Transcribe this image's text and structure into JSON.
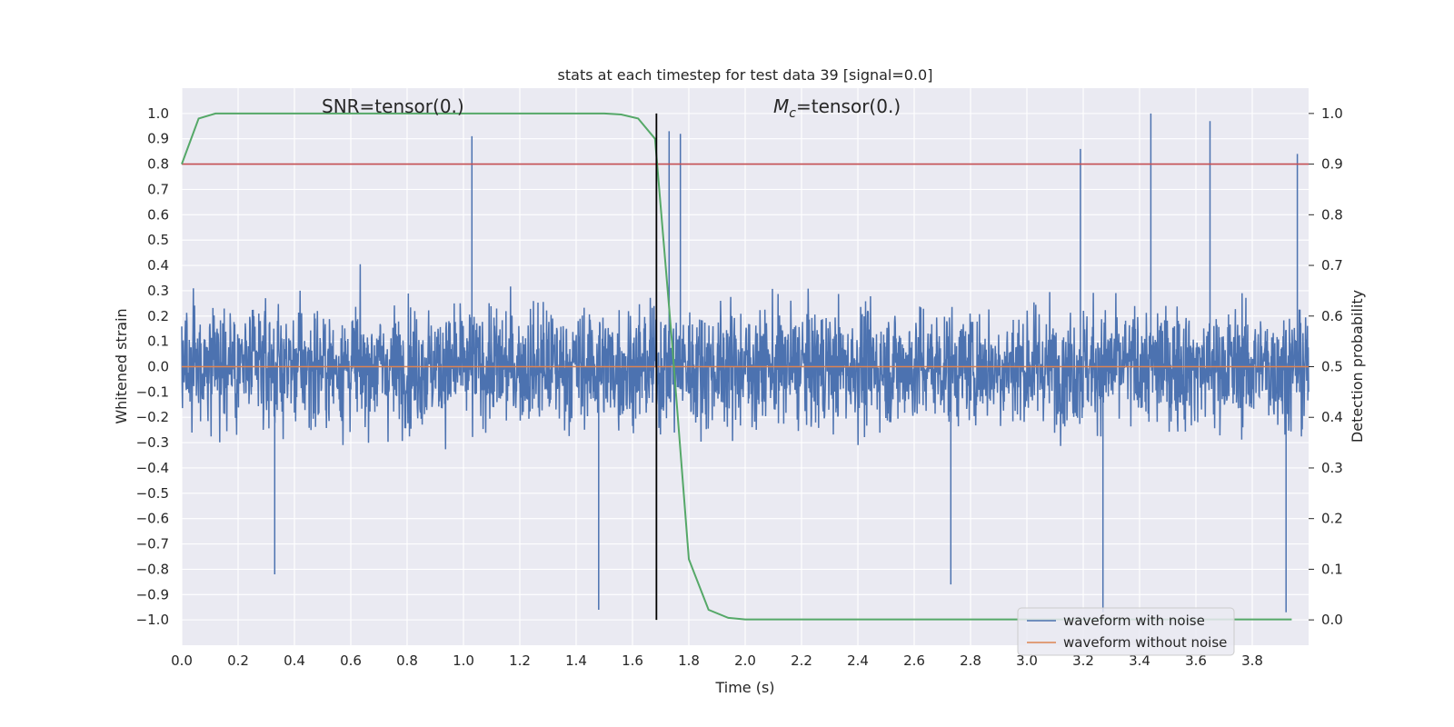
{
  "chart_data": {
    "type": "line",
    "title": "stats at each timestep for test data 39 [signal=0.0]",
    "xlabel": "Time (s)",
    "ylabel": "Whitened strain",
    "y2label": "Detection probability",
    "xlim": [
      0.0,
      4.0
    ],
    "ylim": [
      -1.1,
      1.1
    ],
    "y2lim": [
      -0.05,
      1.05
    ],
    "grid": true,
    "legend_position": "lower-right",
    "x_ticks": [
      "0.0",
      "0.2",
      "0.4",
      "0.6",
      "0.8",
      "1.0",
      "1.2",
      "1.4",
      "1.6",
      "1.8",
      "2.0",
      "2.2",
      "2.4",
      "2.6",
      "2.8",
      "3.0",
      "3.2",
      "3.4",
      "3.6",
      "3.8"
    ],
    "y_ticks": [
      "1.0",
      "0.9",
      "0.8",
      "0.7",
      "0.6",
      "0.5",
      "0.4",
      "0.3",
      "0.2",
      "0.1",
      "0.0",
      "−0.1",
      "−0.2",
      "−0.3",
      "−0.4",
      "−0.5",
      "−0.6",
      "−0.7",
      "−0.8",
      "−0.9",
      "−1.0"
    ],
    "y2_ticks": [
      "1.0",
      "0.9",
      "0.8",
      "0.7",
      "0.6",
      "0.5",
      "0.4",
      "0.3",
      "0.2",
      "0.1",
      "0.0"
    ],
    "annotations": {
      "snr": "SNR=tensor(0.)",
      "mc_symbol": "M",
      "mc_sub": "c",
      "mc_value": "=tensor(0.)"
    },
    "legend": [
      "waveform with noise",
      "waveform without noise"
    ],
    "series": [
      {
        "name": "waveform with noise",
        "color": "#4c72b0",
        "axis": "left",
        "description": "dense noise trace, values mostly within ±0.5 with spikes to about ±1.0",
        "amplitude_range": [
          -0.96,
          1.0
        ],
        "spikes": [
          [
            0.33,
            -0.82
          ],
          [
            1.03,
            0.91
          ],
          [
            1.48,
            -0.96
          ],
          [
            1.73,
            0.93
          ],
          [
            1.77,
            0.92
          ],
          [
            2.73,
            -0.86
          ],
          [
            3.19,
            0.86
          ],
          [
            3.27,
            -0.97
          ],
          [
            3.44,
            1.0
          ],
          [
            3.65,
            0.97
          ],
          [
            3.92,
            -0.97
          ],
          [
            3.96,
            0.84
          ]
        ]
      },
      {
        "name": "waveform without noise",
        "color": "#dd8452",
        "axis": "left",
        "x": [
          0.0,
          4.0
        ],
        "y": [
          0.0,
          0.0
        ]
      },
      {
        "color": "#55a868",
        "axis": "right",
        "x": [
          0.0,
          0.06,
          0.12,
          0.2,
          0.4,
          0.8,
          1.2,
          1.5,
          1.56,
          1.62,
          1.68,
          1.74,
          1.8,
          1.87,
          1.94,
          2.0,
          2.5,
          3.0,
          3.5,
          3.94
        ],
        "y": [
          0.9,
          0.99,
          1.0,
          1.0,
          1.0,
          1.0,
          1.0,
          1.0,
          0.998,
          0.99,
          0.95,
          0.55,
          0.12,
          0.02,
          0.004,
          0.001,
          0.001,
          0.001,
          0.001,
          0.001
        ]
      }
    ],
    "threshold": {
      "color": "#c44e52",
      "axis": "right",
      "y": 0.9
    },
    "vline": {
      "color": "#000000",
      "x": 1.685
    }
  }
}
